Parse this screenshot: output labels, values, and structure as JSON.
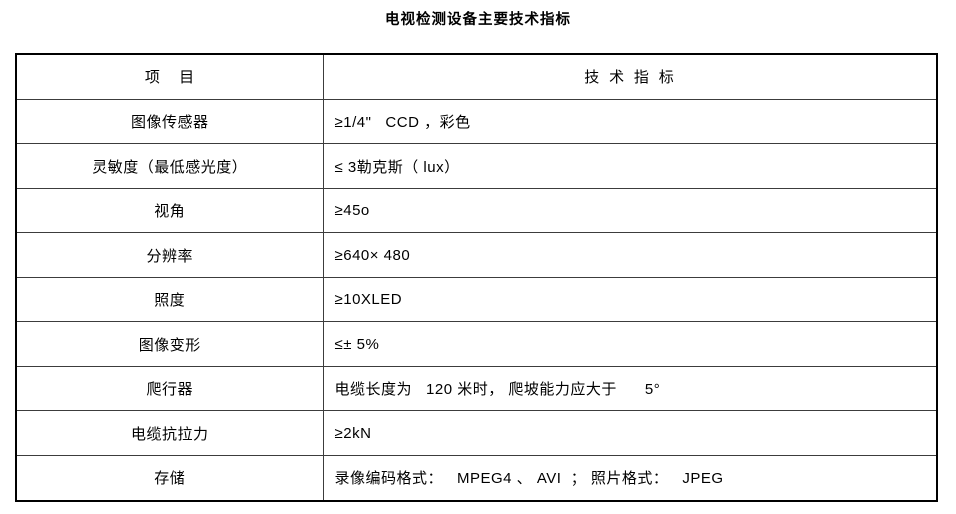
{
  "page": {
    "title": "电视检测设备主要技术指标"
  },
  "table": {
    "headers": {
      "item": "项    目",
      "value": "技  术  指  标"
    },
    "rows": [
      {
        "item": "图像传感器",
        "value": "≥1/4\"   CCD ，彩色"
      },
      {
        "item": "灵敏度（最低感光度）",
        "value": "≤ 3勒克斯（ lux）"
      },
      {
        "item": "视角",
        "value": "≥45o"
      },
      {
        "item": "分辨率",
        "value": "≥640× 480"
      },
      {
        "item": "照度",
        "value": "≥10XLED"
      },
      {
        "item": "图像变形",
        "value": "≤± 5%"
      },
      {
        "item": "爬行器",
        "value": "电缆长度为   120 米时， 爬坡能力应大于      5°"
      },
      {
        "item": "电缆抗拉力",
        "value": "≥2kN"
      },
      {
        "item": "存储",
        "value": "录像编码格式：   MPEG4 、 AVI  ； 照片格式：   JPEG"
      }
    ]
  }
}
